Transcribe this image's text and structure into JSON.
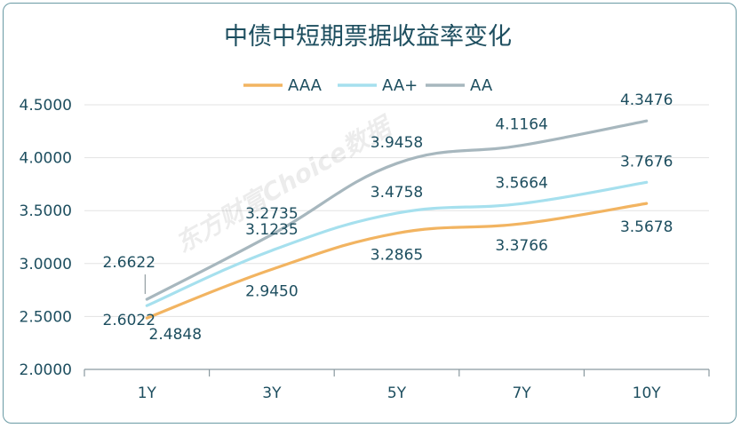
{
  "chart_data": {
    "type": "line",
    "title": "中债中短期票据收益率变化",
    "categories": [
      "1Y",
      "3Y",
      "5Y",
      "7Y",
      "10Y"
    ],
    "ylim": [
      2.0,
      4.5
    ],
    "yticks": [
      "2.0000",
      "2.5000",
      "3.0000",
      "3.5000",
      "4.0000",
      "4.5000"
    ],
    "grid": "horizontal",
    "legend_position": "top",
    "series": [
      {
        "name": "AAA",
        "color": "#f2b461",
        "values": [
          2.4848,
          2.945,
          3.2865,
          3.3766,
          3.5678
        ],
        "labels": [
          "2.4848",
          "2.9450",
          "3.2865",
          "3.3766",
          "3.5678"
        ]
      },
      {
        "name": "AA+",
        "color": "#a6e0ee",
        "values": [
          2.6022,
          3.1235,
          3.4758,
          3.5664,
          3.7676
        ],
        "labels": [
          "2.6022",
          "3.1235",
          "3.4758",
          "3.5664",
          "3.7676"
        ]
      },
      {
        "name": "AA",
        "color": "#a7b7be",
        "values": [
          2.6622,
          3.2735,
          3.9458,
          4.1164,
          4.3476
        ],
        "labels": [
          "2.6622",
          "3.2735",
          "3.9458",
          "4.1164",
          "4.3476"
        ]
      }
    ],
    "watermark": "东方财富Choice数据"
  }
}
